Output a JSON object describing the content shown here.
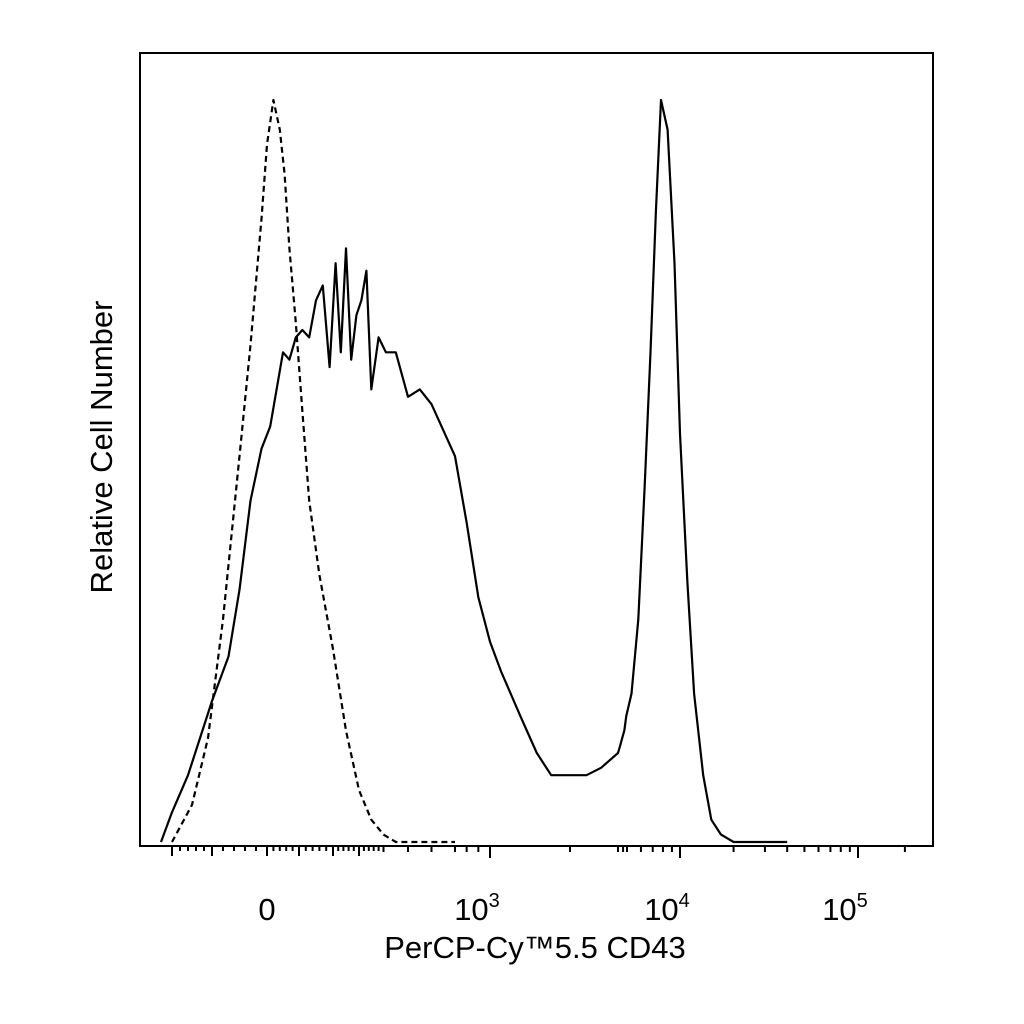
{
  "chart_data": {
    "type": "line",
    "title": "",
    "xlabel": "PerCP-Cy™5.5 CD43",
    "ylabel": "Relative Cell Number",
    "x_scale": "biexponential",
    "xlim": [
      -300,
      250000
    ],
    "ylim": [
      0,
      100
    ],
    "grid": false,
    "legend": "none",
    "tick_labels": [
      {
        "value": 0,
        "base": "0",
        "exp": ""
      },
      {
        "value": 1000,
        "base": "10",
        "exp": "3"
      },
      {
        "value": 10000,
        "base": "10",
        "exp": "4"
      },
      {
        "value": 100000,
        "base": "10",
        "exp": "5"
      }
    ],
    "series": [
      {
        "style": "dashed",
        "color": "#000000",
        "x": [
          -200,
          -150,
          -110,
          -80,
          -50,
          -30,
          -10,
          0,
          20,
          40,
          55,
          70,
          90,
          110,
          130,
          160,
          200,
          250,
          300,
          350,
          400,
          450,
          500,
          550,
          600,
          700
        ],
        "y": [
          0,
          5,
          14,
          30,
          52,
          67,
          84,
          94,
          100,
          96,
          90,
          80,
          70,
          58,
          46,
          36,
          26,
          15,
          7,
          3,
          1,
          0,
          0,
          0,
          0,
          0
        ]
      },
      {
        "style": "solid",
        "color": "#000000",
        "x": [
          -250,
          -200,
          -160,
          -130,
          -100,
          -70,
          -50,
          -30,
          -10,
          10,
          30,
          50,
          70,
          90,
          110,
          130,
          150,
          170,
          190,
          210,
          230,
          250,
          270,
          290,
          310,
          330,
          350,
          380,
          410,
          450,
          500,
          550,
          600,
          700,
          800,
          900,
          1000,
          1100,
          1300,
          1500,
          1700,
          2000,
          2300,
          2600,
          3000,
          3400,
          3800,
          4300,
          4800,
          5300,
          5800,
          6300,
          6800,
          7300,
          7800,
          8500,
          9300,
          10000,
          11000,
          12000,
          13500,
          15000,
          17000,
          20000,
          25000,
          30000,
          40000
        ],
        "y": [
          0,
          4,
          9,
          14,
          19,
          25,
          34,
          46,
          53,
          56,
          61,
          66,
          65,
          68,
          69,
          68,
          73,
          75,
          64,
          78,
          66,
          80,
          65,
          71,
          73,
          77,
          61,
          68,
          66,
          66,
          60,
          61,
          59,
          52,
          43,
          33,
          27,
          23,
          17,
          12,
          9,
          9,
          9,
          10,
          12,
          13,
          14,
          15,
          17,
          20,
          30,
          48,
          66,
          85,
          100,
          96,
          78,
          55,
          35,
          20,
          9,
          3,
          1,
          0,
          0,
          0,
          0
        ]
      }
    ]
  }
}
